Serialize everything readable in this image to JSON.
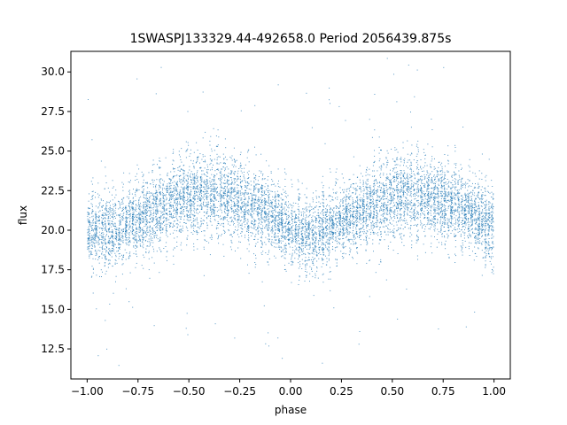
{
  "chart_data": {
    "type": "scatter",
    "title": "1SWASPJ133329.44-492658.0 Period 2056439.875s",
    "xlabel": "phase",
    "ylabel": "flux",
    "xlim": [
      -1.08,
      1.08
    ],
    "ylim": [
      10.6,
      31.3
    ],
    "xticks": [
      -1.0,
      -0.75,
      -0.5,
      -0.25,
      0.0,
      0.25,
      0.5,
      0.75,
      1.0
    ],
    "xtick_labels": [
      "−1.00",
      "−0.75",
      "−0.50",
      "−0.25",
      "0.00",
      "0.25",
      "0.50",
      "0.75",
      "1.00"
    ],
    "yticks": [
      12.5,
      15.0,
      17.5,
      20.0,
      22.5,
      25.0,
      27.5,
      30.0
    ],
    "ytick_labels": [
      "12.5",
      "15.0",
      "17.5",
      "20.0",
      "22.5",
      "25.0",
      "27.5",
      "30.0"
    ],
    "grid": false,
    "marker_color": "#1f77b4",
    "series": [
      {
        "points_note": "dense light curve; binned profile of mean flux vs phase",
        "profile_phase": [
          -1.0,
          -0.9,
          -0.8,
          -0.7,
          -0.6,
          -0.5,
          -0.4,
          -0.3,
          -0.2,
          -0.1,
          0.0,
          0.1,
          0.2,
          0.3,
          0.4,
          0.5,
          0.6,
          0.7,
          0.8,
          0.9,
          1.0
        ],
        "profile_mean": [
          20.0,
          19.8,
          20.3,
          21.0,
          21.7,
          22.2,
          22.3,
          22.0,
          21.6,
          21.0,
          20.0,
          19.7,
          20.2,
          20.9,
          21.6,
          22.1,
          22.3,
          22.0,
          21.6,
          21.0,
          20.0
        ],
        "profile_spread": [
          1.6,
          1.6,
          1.5,
          1.5,
          1.6,
          1.7,
          1.8,
          1.7,
          1.6,
          1.5,
          1.4,
          1.5,
          1.5,
          1.5,
          1.6,
          1.7,
          1.8,
          1.7,
          1.6,
          1.5,
          1.6
        ]
      }
    ]
  }
}
